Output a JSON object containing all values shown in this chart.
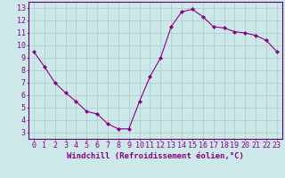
{
  "x": [
    0,
    1,
    2,
    3,
    4,
    5,
    6,
    7,
    8,
    9,
    10,
    11,
    12,
    13,
    14,
    15,
    16,
    17,
    18,
    19,
    20,
    21,
    22,
    23
  ],
  "y": [
    9.5,
    8.3,
    7.0,
    6.2,
    5.5,
    4.7,
    4.5,
    3.7,
    3.3,
    3.3,
    5.5,
    7.5,
    9.0,
    11.5,
    12.7,
    12.9,
    12.3,
    11.5,
    11.4,
    11.1,
    11.0,
    10.8,
    10.4,
    9.5
  ],
  "line_color": "#880088",
  "marker": "D",
  "marker_size": 2,
  "bg_color": "#cce8e8",
  "grid_color": "#aacccc",
  "xlabel": "Windchill (Refroidissement éolien,°C)",
  "xlim": [
    -0.5,
    23.5
  ],
  "ylim": [
    2.5,
    13.5
  ],
  "xticks": [
    0,
    1,
    2,
    3,
    4,
    5,
    6,
    7,
    8,
    9,
    10,
    11,
    12,
    13,
    14,
    15,
    16,
    17,
    18,
    19,
    20,
    21,
    22,
    23
  ],
  "yticks": [
    3,
    4,
    5,
    6,
    7,
    8,
    9,
    10,
    11,
    12,
    13
  ],
  "axis_color": "#660066",
  "tick_color": "#880088",
  "font_size_xlabel": 6.5,
  "font_size_ticks": 6
}
